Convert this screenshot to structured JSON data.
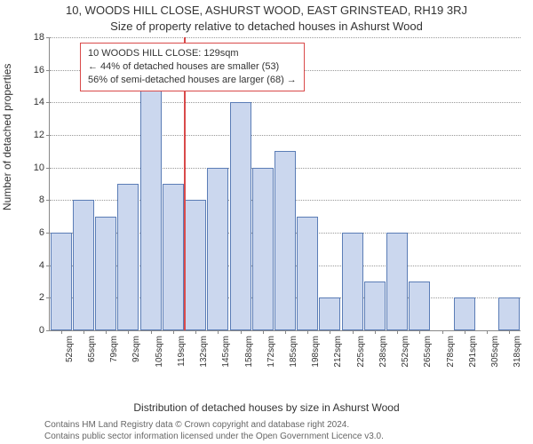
{
  "titles": {
    "main": "10, WOODS HILL CLOSE, ASHURST WOOD, EAST GRINSTEAD, RH19 3RJ",
    "sub": "Size of property relative to detached houses in Ashurst Wood"
  },
  "axes": {
    "ylabel": "Number of detached properties",
    "xlabel": "Distribution of detached houses by size in Ashurst Wood",
    "ylim": [
      0,
      18
    ],
    "ytick_step": 2
  },
  "chart": {
    "type": "bar",
    "bar_fill": "#cbd7ee",
    "bar_stroke": "#5b7db6",
    "background": "#ffffff",
    "grid_color": "#999999",
    "categories": [
      "52sqm",
      "65sqm",
      "79sqm",
      "92sqm",
      "105sqm",
      "119sqm",
      "132sqm",
      "145sqm",
      "158sqm",
      "172sqm",
      "185sqm",
      "198sqm",
      "212sqm",
      "225sqm",
      "238sqm",
      "252sqm",
      "265sqm",
      "278sqm",
      "291sqm",
      "305sqm",
      "318sqm"
    ],
    "values": [
      6,
      8,
      7,
      9,
      15,
      9,
      8,
      10,
      14,
      10,
      11,
      7,
      2,
      6,
      3,
      6,
      3,
      0,
      2,
      0,
      2
    ],
    "bar_width": 0.95
  },
  "reference": {
    "index_between": 5.5,
    "color": "#d94a4a",
    "annotation": {
      "line1": "10 WOODS HILL CLOSE: 129sqm",
      "line2": "← 44% of detached houses are smaller (53)",
      "line3": "56% of semi-detached houses are larger (68) →"
    }
  },
  "footer": {
    "line1": "Contains HM Land Registry data © Crown copyright and database right 2024.",
    "line2": "Contains public sector information licensed under the Open Government Licence v3.0."
  }
}
